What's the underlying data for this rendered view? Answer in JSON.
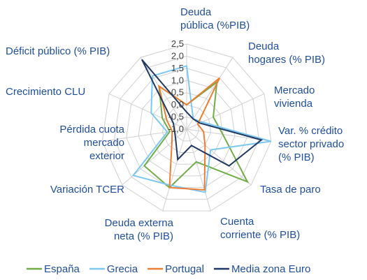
{
  "chart_data": {
    "type": "radar",
    "categories": [
      "Deuda\npública (%PIB)",
      "Deuda\nhogares (% PIB)",
      "Mercado\nvivienda",
      "Var. % crédito\nsector privado\n(% PIB)",
      "Tasa de paro",
      "Cuenta\ncorriente (% PIB)",
      "Deuda externa\nneta (% PIB)",
      "Variación TCER",
      "Pérdida cuota\nmercado\nexterior",
      "Crecimiento CLU",
      "Déficit público (% PIB)"
    ],
    "series": [
      {
        "name": "España",
        "color": "#70ad47",
        "values": [
          0.0,
          1.3,
          0.2,
          0.5,
          2.3,
          0.4,
          1.5,
          1.3,
          -0.3,
          0.1,
          1.1
        ]
      },
      {
        "name": "Grecia",
        "color": "#7cc8ef",
        "values": [
          1.6,
          -0.5,
          -0.3,
          2.5,
          0.3,
          1.7,
          1.4,
          1.9,
          -0.2,
          0.6,
          1.6
        ]
      },
      {
        "name": "Portugal",
        "color": "#ed7d31",
        "values": [
          0.0,
          1.5,
          -0.5,
          -0.3,
          0.0,
          1.6,
          1.5,
          -0.2,
          -0.4,
          -0.1,
          1.1
        ]
      },
      {
        "name": "Media zona Euro",
        "color": "#203864",
        "values": [
          -0.3,
          -0.5,
          -0.4,
          2.1,
          1.3,
          -0.3,
          0.3,
          -0.4,
          -0.5,
          -0.4,
          2.4
        ]
      }
    ],
    "ylim": [
      -1.0,
      2.5
    ],
    "yticks": [
      {
        "value": -1.0,
        "label": "-1,0"
      },
      {
        "value": -0.5,
        "label": "-0,5"
      },
      {
        "value": 0.0,
        "label": "0,0"
      },
      {
        "value": 0.5,
        "label": "0,5"
      },
      {
        "value": 1.0,
        "label": "1,0"
      },
      {
        "value": 1.5,
        "label": "1,5"
      },
      {
        "value": 2.0,
        "label": "2,0"
      },
      {
        "value": 2.5,
        "label": "2,5"
      }
    ],
    "grid": true
  }
}
